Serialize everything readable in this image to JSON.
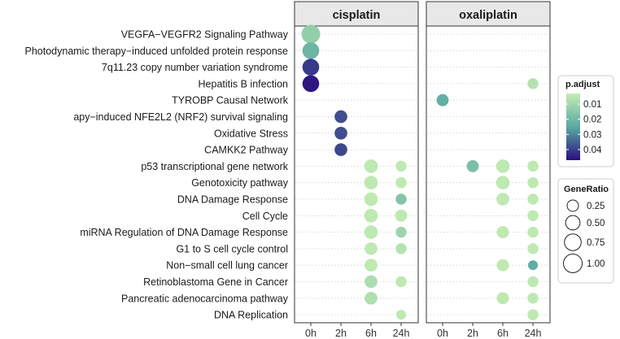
{
  "chart_data": {
    "type": "scatter",
    "facets": [
      "cisplatin",
      "oxaliplatin"
    ],
    "x_categories": [
      "0h",
      "2h",
      "6h",
      "24h"
    ],
    "y_categories": [
      "VEGFA−VEGFR2 Signaling Pathway",
      "Photodynamic therapy−induced unfolded protein response",
      "7q11.23 copy number variation syndrome",
      "Hepatitis B infection",
      "TYROBP Causal Network",
      "apy−induced NFE2L2 (NRF2) survival signaling",
      "Oxidative Stress",
      "CAMKK2  Pathway",
      "p53 transcriptional gene network",
      "Genotoxicity pathway",
      "DNA Damage Response",
      "Cell Cycle",
      "miRNA Regulation of DNA Damage Response",
      "G1 to S cell cycle control",
      "Non−small cell lung cancer",
      "Retinoblastoma Gene in Cancer",
      "Pancreatic adenocarcinoma pathway",
      "DNA Replication"
    ],
    "points": [
      {
        "facet": "cisplatin",
        "x": "0h",
        "term": "VEGFA−VEGFR2 Signaling Pathway",
        "gene_ratio": 1.0,
        "p_adjust": 0.013
      },
      {
        "facet": "cisplatin",
        "x": "0h",
        "term": "Photodynamic therapy−induced unfolded protein response",
        "gene_ratio": 0.75,
        "p_adjust": 0.021
      },
      {
        "facet": "cisplatin",
        "x": "0h",
        "term": "7q11.23 copy number variation syndrome",
        "gene_ratio": 0.75,
        "p_adjust": 0.041
      },
      {
        "facet": "cisplatin",
        "x": "0h",
        "term": "Hepatitis B infection",
        "gene_ratio": 0.75,
        "p_adjust": 0.046
      },
      {
        "facet": "cisplatin",
        "x": "2h",
        "term": "apy−induced NFE2L2 (NRF2) survival signaling",
        "gene_ratio": 0.35,
        "p_adjust": 0.038
      },
      {
        "facet": "cisplatin",
        "x": "2h",
        "term": "Oxidative Stress",
        "gene_ratio": 0.35,
        "p_adjust": 0.038
      },
      {
        "facet": "cisplatin",
        "x": "2h",
        "term": "CAMKK2  Pathway",
        "gene_ratio": 0.35,
        "p_adjust": 0.039
      },
      {
        "facet": "cisplatin",
        "x": "6h",
        "term": "p53 transcriptional gene network",
        "gene_ratio": 0.42,
        "p_adjust": 0.004
      },
      {
        "facet": "cisplatin",
        "x": "24h",
        "term": "p53 transcriptional gene network",
        "gene_ratio": 0.22,
        "p_adjust": 0.004
      },
      {
        "facet": "cisplatin",
        "x": "6h",
        "term": "Genotoxicity pathway",
        "gene_ratio": 0.42,
        "p_adjust": 0.004
      },
      {
        "facet": "cisplatin",
        "x": "24h",
        "term": "Genotoxicity pathway",
        "gene_ratio": 0.22,
        "p_adjust": 0.004
      },
      {
        "facet": "cisplatin",
        "x": "6h",
        "term": "DNA Damage Response",
        "gene_ratio": 0.42,
        "p_adjust": 0.004
      },
      {
        "facet": "cisplatin",
        "x": "24h",
        "term": "DNA Damage Response",
        "gene_ratio": 0.22,
        "p_adjust": 0.016
      },
      {
        "facet": "cisplatin",
        "x": "6h",
        "term": "Cell Cycle",
        "gene_ratio": 0.42,
        "p_adjust": 0.004
      },
      {
        "facet": "cisplatin",
        "x": "24h",
        "term": "Cell Cycle",
        "gene_ratio": 0.3,
        "p_adjust": 0.004
      },
      {
        "facet": "cisplatin",
        "x": "6h",
        "term": "miRNA Regulation of DNA Damage Response",
        "gene_ratio": 0.42,
        "p_adjust": 0.004
      },
      {
        "facet": "cisplatin",
        "x": "24h",
        "term": "miRNA Regulation of DNA Damage Response",
        "gene_ratio": 0.22,
        "p_adjust": 0.011
      },
      {
        "facet": "cisplatin",
        "x": "6h",
        "term": "G1 to S cell cycle control",
        "gene_ratio": 0.35,
        "p_adjust": 0.004
      },
      {
        "facet": "cisplatin",
        "x": "24h",
        "term": "G1 to S cell cycle control",
        "gene_ratio": 0.22,
        "p_adjust": 0.006
      },
      {
        "facet": "cisplatin",
        "x": "6h",
        "term": "Non−small cell lung cancer",
        "gene_ratio": 0.35,
        "p_adjust": 0.004
      },
      {
        "facet": "cisplatin",
        "x": "6h",
        "term": "Retinoblastoma Gene in Cancer",
        "gene_ratio": 0.35,
        "p_adjust": 0.008
      },
      {
        "facet": "cisplatin",
        "x": "24h",
        "term": "Retinoblastoma Gene in Cancer",
        "gene_ratio": 0.22,
        "p_adjust": 0.004
      },
      {
        "facet": "cisplatin",
        "x": "6h",
        "term": "Pancreatic adenocarcinoma pathway",
        "gene_ratio": 0.35,
        "p_adjust": 0.007
      },
      {
        "facet": "cisplatin",
        "x": "24h",
        "term": "DNA Replication",
        "gene_ratio": 0.15,
        "p_adjust": 0.004
      },
      {
        "facet": "oxaliplatin",
        "x": "24h",
        "term": "Hepatitis B infection",
        "gene_ratio": 0.22,
        "p_adjust": 0.006
      },
      {
        "facet": "oxaliplatin",
        "x": "0h",
        "term": "TYROBP Causal Network",
        "gene_ratio": 0.3,
        "p_adjust": 0.023
      },
      {
        "facet": "oxaliplatin",
        "x": "2h",
        "term": "p53 transcriptional gene network",
        "gene_ratio": 0.3,
        "p_adjust": 0.018
      },
      {
        "facet": "oxaliplatin",
        "x": "6h",
        "term": "p53 transcriptional gene network",
        "gene_ratio": 0.42,
        "p_adjust": 0.004
      },
      {
        "facet": "oxaliplatin",
        "x": "24h",
        "term": "p53 transcriptional gene network",
        "gene_ratio": 0.22,
        "p_adjust": 0.004
      },
      {
        "facet": "oxaliplatin",
        "x": "6h",
        "term": "Genotoxicity pathway",
        "gene_ratio": 0.42,
        "p_adjust": 0.004
      },
      {
        "facet": "oxaliplatin",
        "x": "24h",
        "term": "Genotoxicity pathway",
        "gene_ratio": 0.22,
        "p_adjust": 0.004
      },
      {
        "facet": "oxaliplatin",
        "x": "6h",
        "term": "DNA Damage Response",
        "gene_ratio": 0.35,
        "p_adjust": 0.004
      },
      {
        "facet": "oxaliplatin",
        "x": "24h",
        "term": "DNA Damage Response",
        "gene_ratio": 0.22,
        "p_adjust": 0.004
      },
      {
        "facet": "oxaliplatin",
        "x": "24h",
        "term": "Cell Cycle",
        "gene_ratio": 0.22,
        "p_adjust": 0.004
      },
      {
        "facet": "oxaliplatin",
        "x": "6h",
        "term": "miRNA Regulation of DNA Damage Response",
        "gene_ratio": 0.3,
        "p_adjust": 0.004
      },
      {
        "facet": "oxaliplatin",
        "x": "24h",
        "term": "miRNA Regulation of DNA Damage Response",
        "gene_ratio": 0.22,
        "p_adjust": 0.004
      },
      {
        "facet": "oxaliplatin",
        "x": "24h",
        "term": "G1 to S cell cycle control",
        "gene_ratio": 0.22,
        "p_adjust": 0.004
      },
      {
        "facet": "oxaliplatin",
        "x": "6h",
        "term": "Non−small cell lung cancer",
        "gene_ratio": 0.3,
        "p_adjust": 0.004
      },
      {
        "facet": "oxaliplatin",
        "x": "24h",
        "term": "Non−small cell lung cancer",
        "gene_ratio": 0.15,
        "p_adjust": 0.024
      },
      {
        "facet": "oxaliplatin",
        "x": "24h",
        "term": "Retinoblastoma Gene in Cancer",
        "gene_ratio": 0.22,
        "p_adjust": 0.004
      },
      {
        "facet": "oxaliplatin",
        "x": "6h",
        "term": "Pancreatic adenocarcinoma pathway",
        "gene_ratio": 0.3,
        "p_adjust": 0.004
      },
      {
        "facet": "oxaliplatin",
        "x": "24h",
        "term": "Pancreatic adenocarcinoma pathway",
        "gene_ratio": 0.22,
        "p_adjust": 0.004
      },
      {
        "facet": "oxaliplatin",
        "x": "24h",
        "term": "DNA Replication",
        "gene_ratio": 0.22,
        "p_adjust": 0.004
      }
    ],
    "color_legend": {
      "title": "p.adjust",
      "ticks": [
        0.01,
        0.02,
        0.03,
        0.04
      ],
      "tick_labels": [
        "0.01",
        "0.02",
        "0.03",
        "0.04"
      ],
      "range": [
        0.003,
        0.047
      ],
      "low_color": "#c3ecb2",
      "mid_color": "#5aa9a3",
      "high_color": "#2b0f7f"
    },
    "size_legend": {
      "title": "GeneRatio",
      "values": [
        0.25,
        0.5,
        0.75,
        1.0
      ],
      "labels": [
        "0.25",
        "0.50",
        "0.75",
        "1.00"
      ]
    },
    "grid": true,
    "legend_position": "right",
    "panel_background": "#ffffff",
    "strip_background": "#e8e8e8"
  }
}
